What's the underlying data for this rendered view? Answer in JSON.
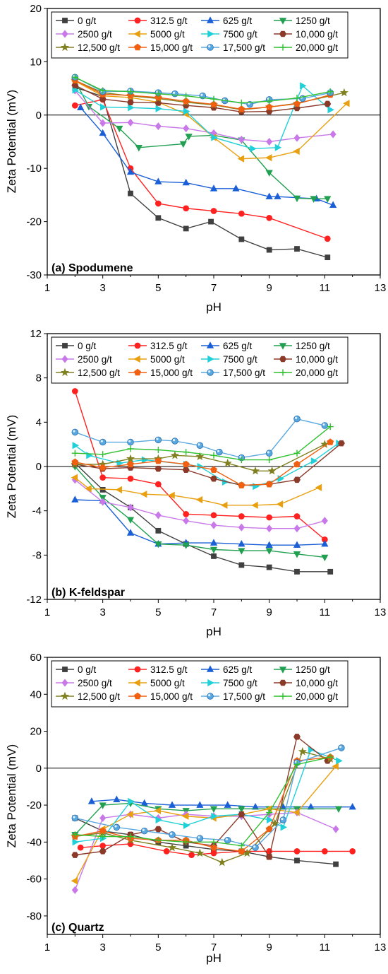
{
  "legend_labels": [
    "0 g/t",
    "312.5 g/t",
    "625 g/t",
    "1250 g/t",
    "2500 g/t",
    "5000 g/t",
    "7500 g/t",
    "10,000 g/t",
    "12,500 g/t",
    "15,000 g/t",
    "17,500 g/t",
    "20,000 g/t"
  ],
  "series_styles": [
    {
      "color": "#404040",
      "marker": "square"
    },
    {
      "color": "#ff2020",
      "marker": "circle"
    },
    {
      "color": "#1a5fd6",
      "marker": "triangle-up"
    },
    {
      "color": "#20a050",
      "marker": "triangle-down"
    },
    {
      "color": "#c878e8",
      "marker": "diamond"
    },
    {
      "color": "#e8a010",
      "marker": "triangle-left"
    },
    {
      "color": "#20d0d8",
      "marker": "triangle-right"
    },
    {
      "color": "#8b3a2a",
      "marker": "hexagon"
    },
    {
      "color": "#808020",
      "marker": "star"
    },
    {
      "color": "#f06010",
      "marker": "pentagon"
    },
    {
      "color": "#5aa8e0",
      "marker": "sphere"
    },
    {
      "color": "#30c030",
      "marker": "plus"
    }
  ],
  "chart_data": [
    {
      "type": "line",
      "title": "(a) Spodumene",
      "xlabel": "pH",
      "ylabel": "Zeta Potential (mV)",
      "xlim": [
        1,
        13
      ],
      "ylim": [
        -30,
        20
      ],
      "xticks": [
        1,
        3,
        5,
        7,
        9,
        11,
        13
      ],
      "yticks": [
        -30,
        -20,
        -10,
        0,
        10,
        20
      ],
      "zero_line": true,
      "legend_position": "top",
      "series": [
        {
          "name": "0 g/t",
          "x": [
            2,
            3,
            4,
            5,
            6,
            6.9,
            8,
            9,
            10,
            11.1
          ],
          "y": [
            5.2,
            3.5,
            -14.7,
            -19.3,
            -21.3,
            -20,
            -23.3,
            -25.3,
            -25.1,
            -26.7
          ]
        },
        {
          "name": "312.5 g/t",
          "x": [
            2,
            3,
            4,
            5,
            6,
            7,
            8,
            9,
            11.1
          ],
          "y": [
            1.8,
            2.9,
            -10,
            -16.6,
            -17.5,
            -18,
            -18.5,
            -19.3,
            -23.2
          ]
        },
        {
          "name": "625 g/t",
          "x": [
            2.2,
            3,
            4,
            5,
            6,
            7,
            7.8,
            9,
            9.3,
            10.7,
            11.3
          ],
          "y": [
            1.4,
            -3.4,
            -10.7,
            -12.5,
            -12.7,
            -13.8,
            -13.8,
            -15.3,
            -15.3,
            -15.7,
            -16.9
          ]
        },
        {
          "name": "1250 g/t",
          "x": [
            2,
            2.5,
            3.6,
            4.3,
            5.9,
            6.1,
            7,
            8,
            9,
            10,
            10.6,
            11.1
          ],
          "y": [
            6.4,
            1.6,
            -2.5,
            -6.1,
            -5.4,
            -4,
            -3.8,
            -4.7,
            -10.8,
            -15.6,
            -15.7,
            -15.7
          ]
        },
        {
          "name": "2500 g/t",
          "x": [
            2,
            3,
            4,
            5,
            6,
            7,
            8,
            9,
            10,
            11.3
          ],
          "y": [
            4.6,
            -1.5,
            -1.4,
            -2.1,
            -2.5,
            -3.4,
            -4.6,
            -5,
            -4.3,
            -3.6
          ]
        },
        {
          "name": "5000 g/t",
          "x": [
            2,
            3,
            4,
            5,
            6,
            7,
            8,
            9,
            10,
            11.8
          ],
          "y": [
            6.4,
            3.6,
            3.3,
            2.4,
            0.2,
            -4.2,
            -8.2,
            -8,
            -6.8,
            2.2
          ]
        },
        {
          "name": "7500 g/t",
          "x": [
            2,
            3,
            4,
            5,
            6,
            7,
            8.4,
            9.3,
            10.2,
            11.2
          ],
          "y": [
            4.7,
            1.5,
            1.4,
            1.2,
            0.7,
            -4.2,
            -6.3,
            -6.1,
            5.5,
            1
          ]
        },
        {
          "name": "10,000 g/t",
          "x": [
            2,
            3,
            4,
            5,
            6,
            7,
            8,
            9,
            10,
            11.1
          ],
          "y": [
            5.6,
            3,
            2.4,
            2.3,
            1.8,
            1.4,
            0.6,
            0.7,
            1.3,
            2.1
          ]
        },
        {
          "name": "12,500 g/t",
          "x": [
            2,
            3,
            4,
            5,
            6,
            7,
            8,
            9,
            10,
            11.7
          ],
          "y": [
            6.5,
            4.2,
            3.6,
            3.1,
            2.4,
            1.9,
            1,
            1.5,
            2.2,
            4.2
          ]
        },
        {
          "name": "15,000 g/t",
          "x": [
            2,
            3,
            4,
            5,
            6,
            7,
            8,
            9,
            10,
            11.2
          ],
          "y": [
            6.5,
            3.9,
            3.7,
            3.3,
            2.6,
            2,
            1.1,
            1.5,
            2.1,
            3.8
          ]
        },
        {
          "name": "17,500 g/t",
          "x": [
            2,
            3,
            4,
            5,
            5.6,
            6.6,
            7.4,
            8.3,
            9,
            10.2,
            11.2
          ],
          "y": [
            7.1,
            4.4,
            4.5,
            4.2,
            4,
            3.6,
            2.7,
            2,
            2.9,
            3.1,
            4.2
          ]
        },
        {
          "name": "20,000 g/t",
          "x": [
            2,
            3,
            4,
            5,
            6,
            7,
            8,
            9,
            10,
            11.2
          ],
          "y": [
            7.1,
            4.6,
            4.4,
            4,
            3.6,
            3,
            2.3,
            2.6,
            3.2,
            4.4
          ]
        }
      ]
    },
    {
      "type": "line",
      "title": "(b) K-feldspar",
      "xlabel": "pH",
      "ylabel": "Zeta Potential (mV)",
      "xlim": [
        1,
        13
      ],
      "ylim": [
        -12,
        12
      ],
      "xticks": [
        1,
        3,
        5,
        7,
        9,
        11,
        13
      ],
      "yticks": [
        -12,
        -8,
        -4,
        0,
        4,
        8,
        12
      ],
      "zero_line": true,
      "legend_position": "top",
      "series": [
        {
          "name": "0 g/t",
          "x": [
            2,
            3,
            4,
            5,
            6,
            7,
            8,
            9,
            10,
            11.2
          ],
          "y": [
            0.3,
            -2.1,
            -3.7,
            -5.8,
            -7,
            -8.1,
            -8.9,
            -9.1,
            -9.5,
            -9.5
          ]
        },
        {
          "name": "312.5 g/t",
          "x": [
            2,
            3,
            4,
            5,
            6,
            7,
            8,
            9,
            10,
            11
          ],
          "y": [
            6.8,
            -1,
            -1.1,
            -1.6,
            -4.3,
            -4.4,
            -4.5,
            -4.6,
            -4.5,
            -6.6
          ]
        },
        {
          "name": "625 g/t",
          "x": [
            2,
            3,
            4,
            5,
            6,
            7,
            8,
            9,
            10,
            11
          ],
          "y": [
            -3,
            -3.1,
            -6,
            -7,
            -6.9,
            -6.9,
            -7,
            -7.1,
            -7.1,
            -7
          ]
        },
        {
          "name": "1250 g/t",
          "x": [
            2,
            3,
            4,
            5,
            6,
            7,
            8,
            9,
            10,
            11
          ],
          "y": [
            0,
            -2.8,
            -4.8,
            -7,
            -7.1,
            -7.5,
            -7.6,
            -7.6,
            -7.9,
            -8.2
          ]
        },
        {
          "name": "2500 g/t",
          "x": [
            2,
            3,
            4,
            5,
            6,
            7,
            8,
            9,
            10,
            11
          ],
          "y": [
            -1.2,
            -3.2,
            -3.7,
            -4.4,
            -4.9,
            -5.3,
            -5.5,
            -5.6,
            -5.6,
            -4.9
          ]
        },
        {
          "name": "5000 g/t",
          "x": [
            2,
            2.5,
            3.6,
            4.5,
            5.5,
            6.5,
            7.4,
            8.5,
            9.4,
            10.8
          ],
          "y": [
            -1,
            -2,
            -2.1,
            -2.5,
            -2.6,
            -3,
            -3.5,
            -3.5,
            -3.4,
            -1.9
          ]
        },
        {
          "name": "7500 g/t",
          "x": [
            2,
            2.5,
            3.6,
            4.5,
            6,
            6.5,
            7.4,
            8.5,
            9.4,
            10.6,
            11.5
          ],
          "y": [
            1.9,
            1,
            0.3,
            0.6,
            0.2,
            0,
            -1.4,
            -1.8,
            -1.1,
            0.5,
            2.1
          ]
        },
        {
          "name": "10,000 g/t",
          "x": [
            2,
            3,
            4,
            5,
            6,
            7,
            8,
            9,
            10,
            11.6
          ],
          "y": [
            0.2,
            -0.2,
            -0.1,
            -0.2,
            -0.3,
            -1.1,
            -1.7,
            -1.6,
            -1.2,
            2.1
          ]
        },
        {
          "name": "12,500 g/t",
          "x": [
            2,
            3,
            4,
            5,
            5.6,
            6.5,
            7.5,
            8.5,
            9.1,
            11
          ],
          "y": [
            0.2,
            0.2,
            0.7,
            0.7,
            1,
            0.9,
            0.3,
            -0.4,
            -0.4,
            2
          ]
        },
        {
          "name": "15,000 g/t",
          "x": [
            2,
            3,
            4,
            5,
            6,
            7,
            8,
            9,
            10,
            11.2
          ],
          "y": [
            0.4,
            -0.1,
            0.2,
            0.5,
            0.2,
            -0.3,
            -1.7,
            -1.6,
            0.2,
            2.2
          ]
        },
        {
          "name": "17,500 g/t",
          "x": [
            2,
            3,
            4,
            5,
            5.6,
            6.5,
            7.2,
            8,
            9,
            10,
            11
          ],
          "y": [
            3.1,
            2.2,
            2.2,
            2.4,
            2.3,
            1.9,
            1.3,
            0.8,
            1.2,
            4.3,
            3.7
          ]
        },
        {
          "name": "20,000 g/t",
          "x": [
            2,
            3,
            4,
            5,
            6,
            7,
            8,
            9,
            10,
            11.2
          ],
          "y": [
            1.2,
            1.1,
            1.6,
            1.5,
            1.3,
            1,
            0.6,
            0.6,
            1.2,
            3.6
          ]
        }
      ]
    },
    {
      "type": "line",
      "title": "(c) Quartz",
      "xlabel": "pH",
      "ylabel": "Zeta Potential (mV)",
      "xlim": [
        1,
        13
      ],
      "ylim": [
        -90,
        60
      ],
      "xticks": [
        1,
        3,
        5,
        7,
        9,
        11,
        13
      ],
      "yticks": [
        -80,
        -60,
        -40,
        -20,
        0,
        20,
        40,
        60
      ],
      "zero_line": true,
      "legend_position": "top",
      "series": [
        {
          "name": "0 g/t",
          "x": [
            2,
            3,
            4,
            5,
            6,
            7,
            8,
            9,
            10,
            11.4
          ],
          "y": [
            -27,
            -34,
            -36,
            -40,
            -42,
            -44,
            -45,
            -48,
            -50,
            -52
          ]
        },
        {
          "name": "312.5 g/t",
          "x": [
            2.2,
            3,
            4,
            5.3,
            6.2,
            7,
            8,
            9,
            10,
            11,
            12
          ],
          "y": [
            -43,
            -42,
            -41,
            -45,
            -47,
            -46,
            -45,
            -45,
            -45,
            -45,
            -45
          ]
        },
        {
          "name": "625 g/t",
          "x": [
            2.6,
            3.5,
            4.5,
            5.5,
            6.5,
            7.5,
            8.5,
            9.5,
            10.5,
            12
          ],
          "y": [
            -18,
            -17,
            -19,
            -20,
            -20,
            -20,
            -21,
            -21,
            -21,
            -21
          ]
        },
        {
          "name": "1250 g/t",
          "x": [
            2,
            3,
            4,
            5,
            6,
            7,
            8,
            9,
            10,
            11.5
          ],
          "y": [
            -36,
            -20,
            -19,
            -22,
            -23,
            -22,
            -22,
            -22,
            -22,
            -22
          ]
        },
        {
          "name": "2500 g/t",
          "x": [
            2,
            3,
            4,
            5,
            6,
            7,
            8,
            9,
            10,
            11.4
          ],
          "y": [
            -66,
            -27,
            -25,
            -27,
            -25,
            -26,
            -26,
            -25,
            -24,
            -33
          ]
        },
        {
          "name": "5000 g/t",
          "x": [
            2,
            3,
            4,
            5,
            6,
            7,
            8,
            9,
            10,
            11.4
          ],
          "y": [
            -61,
            -33,
            -25,
            -23,
            -26,
            -27,
            -25,
            -22,
            -24,
            1
          ]
        },
        {
          "name": "7500 g/t",
          "x": [
            2,
            3,
            4,
            5,
            6,
            7,
            8,
            9,
            9.5,
            10.5,
            11.5
          ],
          "y": [
            -40,
            -38,
            -18,
            -28,
            -31,
            -26,
            -25,
            -28,
            -32,
            10,
            4
          ]
        },
        {
          "name": "10,000 g/t",
          "x": [
            2,
            3,
            4,
            5,
            6,
            7,
            8,
            9,
            10,
            11.1
          ],
          "y": [
            -47,
            -45,
            -36,
            -33,
            -40,
            -42,
            -25,
            -48,
            17,
            4
          ]
        },
        {
          "name": "12,500 g/t",
          "x": [
            2,
            3,
            4,
            5.5,
            6.5,
            7.3,
            8.2,
            9.2,
            10.2,
            11.2
          ],
          "y": [
            -37,
            -35,
            -39,
            -43,
            -46,
            -51,
            -46,
            -30,
            9,
            5
          ]
        },
        {
          "name": "15,000 g/t",
          "x": [
            2,
            3,
            4,
            5,
            6,
            7,
            8,
            9,
            10,
            11.2
          ],
          "y": [
            -37,
            -34,
            -38,
            -39,
            -39,
            -43,
            -45,
            -33,
            4,
            6
          ]
        },
        {
          "name": "17,500 g/t",
          "x": [
            2,
            3.5,
            4.5,
            5.5,
            6.5,
            7.5,
            8.5,
            9.5,
            10,
            11.6
          ],
          "y": [
            -27,
            -32,
            -34,
            -36,
            -38,
            -39,
            -43,
            -28,
            3,
            11
          ]
        },
        {
          "name": "20,000 g/t",
          "x": [
            2,
            3,
            4,
            5,
            6,
            7,
            8,
            9,
            10,
            11.2
          ],
          "y": [
            -36,
            -37,
            -37,
            -39,
            -40,
            -40,
            -42,
            -24,
            2,
            6
          ]
        }
      ]
    }
  ]
}
